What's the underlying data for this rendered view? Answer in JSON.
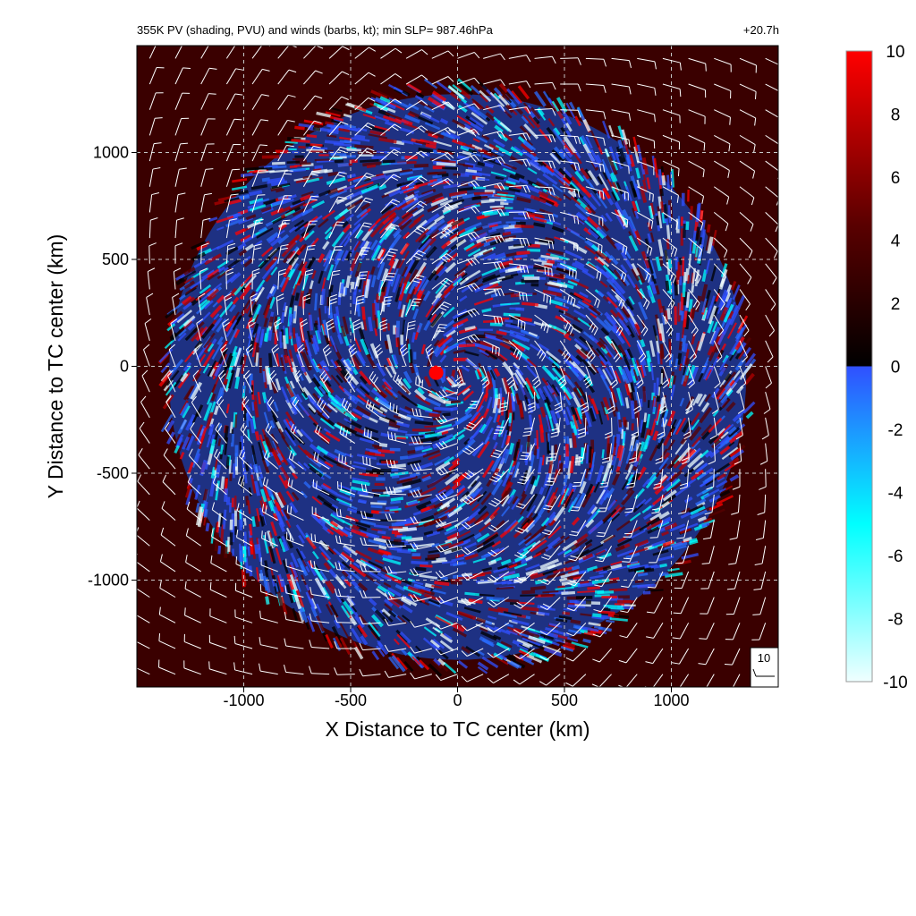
{
  "chart_data": {
    "type": "heatmap",
    "title": "355K PV (shading, PVU) and winds (barbs, kt); min SLP= 987.46hPa",
    "time_label": "+20.7h",
    "xlabel": "X Distance to TC center (km)",
    "ylabel": "Y Distance to TC center (km)",
    "xlim": [
      -1500,
      1500
    ],
    "ylim": [
      -1500,
      1500
    ],
    "x_ticks": [
      -1000,
      -500,
      0,
      500,
      1000
    ],
    "y_ticks": [
      1000,
      500,
      0,
      -500,
      -1000
    ],
    "grid": true,
    "grid_style": "dashed",
    "field": {
      "name": "355K PV",
      "units": "PVU",
      "storm_disturbed_radius_km": 1350,
      "inner_center_max_km": [
        -100,
        -30
      ]
    },
    "colorbar": {
      "position": "right",
      "range": [
        -10,
        10
      ],
      "ticks": [
        10,
        8,
        6,
        4,
        2,
        0,
        -2,
        -4,
        -6,
        -8,
        -10
      ],
      "colors": {
        "pos_low": "#000000",
        "pos_mid": "#5a0000",
        "pos_high": "#ff0000",
        "neg_low": "#3050ff",
        "neg_mid": "#00ffff",
        "neg_high": "#f0ffff"
      }
    },
    "wind_barbs": {
      "units": "kt",
      "grid_spacing_km": 120,
      "circulation": "cyclonic",
      "reference_vector_label": "10"
    }
  }
}
